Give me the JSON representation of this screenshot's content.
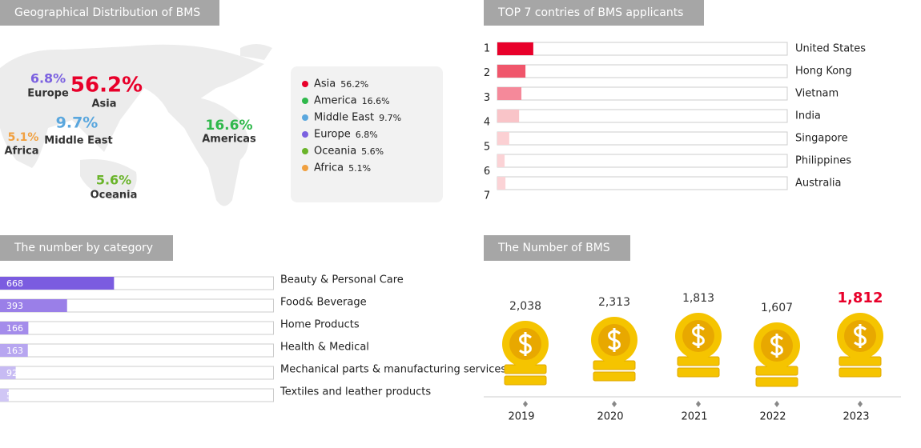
{
  "chart_data": [
    {
      "type": "map",
      "title": "Geographical Distribution of BMS",
      "categories": [
        "Asia",
        "America",
        "Middle East",
        "Europe",
        "Oceania",
        "Africa"
      ],
      "map_labels": [
        "Asia",
        "Americas",
        "Middle East",
        "Europe",
        "Oceania",
        "Africa"
      ],
      "values": [
        56.2,
        16.6,
        9.7,
        6.8,
        5.6,
        5.1
      ],
      "value_labels": [
        "56.2%",
        "16.6%",
        "9.7%",
        "6.8%",
        "5.6%",
        "5.1%"
      ],
      "colors": [
        "#e8002a",
        "#2fb84b",
        "#5aa7de",
        "#7b61e0",
        "#6ab42a",
        "#f0a040"
      ]
    },
    {
      "type": "rank-bar",
      "title": "TOP 7 contries of BMS applicants",
      "ranks": [
        1,
        2,
        3,
        4,
        5,
        6,
        7
      ],
      "categories": [
        "United States",
        "Hong Kong",
        "Vietnam",
        "India",
        "Singapore",
        "Philippines",
        "Australia"
      ],
      "values": [
        12.4,
        9.7,
        8.3,
        7.5,
        4.1,
        2.5,
        2.8
      ],
      "colors": [
        "#e8002a",
        "#f0566b",
        "#f5899a",
        "#f9c4c8",
        "#fbd0d3",
        "#fbd3d6",
        "#fbd3d6"
      ],
      "xlim": [
        0,
        100
      ]
    },
    {
      "type": "hbar",
      "title": "The number by category",
      "categories": [
        "Beauty & Personal Care",
        "Food& Beverage",
        "Home Products",
        "Health & Medical",
        "Mechanical parts & manufacturing services",
        "Textiles and leather products"
      ],
      "values": [
        668,
        393,
        166,
        163,
        92,
        51
      ],
      "colors": [
        "#7b5ce0",
        "#9a7fe8",
        "#a48ceb",
        "#b7a6f0",
        "#c7bbf3",
        "#d0c6f5"
      ],
      "xlim": [
        0,
        1600
      ]
    },
    {
      "type": "coins",
      "title": "The Number of BMS",
      "categories": [
        "2019",
        "2020",
        "2021",
        "2022",
        "2023"
      ],
      "values": [
        2038,
        2313,
        1813,
        1607,
        1812
      ],
      "value_labels": [
        "2,038",
        "2,313",
        "1,813",
        "1,607",
        "1,812"
      ],
      "label_colors": [
        "#333333",
        "#333333",
        "#333333",
        "#333333",
        "#e8002a"
      ]
    }
  ]
}
